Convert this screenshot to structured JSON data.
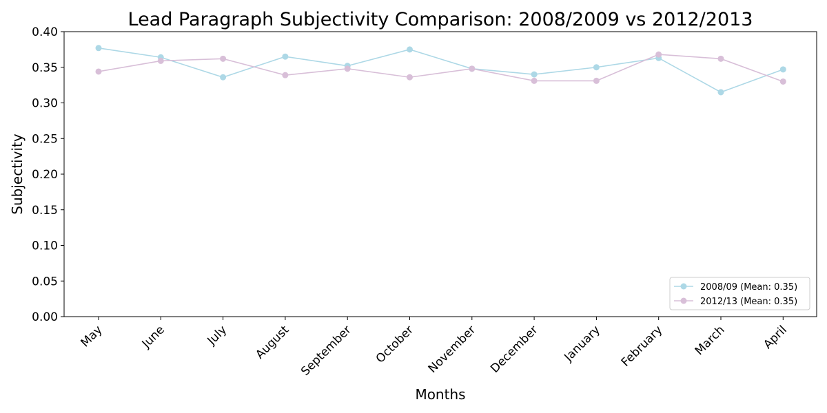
{
  "chart_data": {
    "type": "line",
    "title": "Lead Paragraph Subjectivity Comparison: 2008/2009 vs 2012/2013",
    "xlabel": "Months",
    "ylabel": "Subjectivity",
    "categories": [
      "May",
      "June",
      "July",
      "August",
      "September",
      "October",
      "November",
      "December",
      "January",
      "February",
      "March",
      "April"
    ],
    "ylim": [
      0,
      0.4
    ],
    "yticks": [
      "0.00",
      "0.05",
      "0.10",
      "0.15",
      "0.20",
      "0.25",
      "0.30",
      "0.35",
      "0.40"
    ],
    "grid": false,
    "legend_position": "bottom-right",
    "series": [
      {
        "name": "2008/09 (Mean: 0.35)",
        "color": "#add8e6",
        "values": [
          0.377,
          0.364,
          0.336,
          0.365,
          0.352,
          0.375,
          0.348,
          0.34,
          0.35,
          0.363,
          0.315,
          0.347
        ]
      },
      {
        "name": "2012/13 (Mean: 0.35)",
        "color": "#d8bfd8",
        "values": [
          0.344,
          0.359,
          0.362,
          0.339,
          0.348,
          0.336,
          0.348,
          0.331,
          0.331,
          0.368,
          0.362,
          0.33
        ]
      }
    ]
  }
}
